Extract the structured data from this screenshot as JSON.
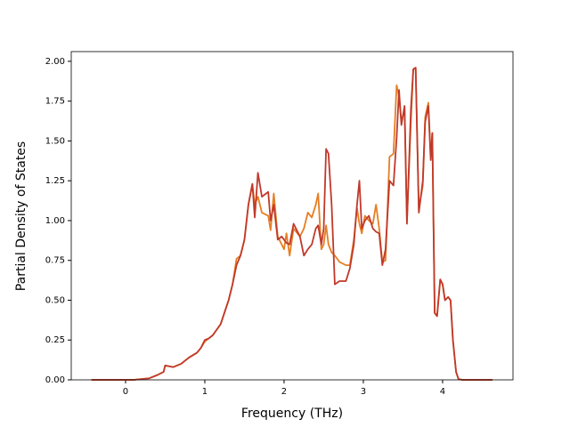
{
  "chart_data": {
    "type": "line",
    "xlabel": "Frequency (THz)",
    "ylabel": "Partial Density of States",
    "x": [
      -0.43,
      0.1,
      0.2,
      0.3,
      0.4,
      0.48,
      0.5,
      0.6,
      0.7,
      0.8,
      0.9,
      0.95,
      1.0,
      1.05,
      1.1,
      1.2,
      1.3,
      1.35,
      1.4,
      1.45,
      1.5,
      1.55,
      1.6,
      1.63,
      1.67,
      1.72,
      1.8,
      1.83,
      1.87,
      1.92,
      1.97,
      2.0,
      2.03,
      2.07,
      2.12,
      2.2,
      2.25,
      2.3,
      2.35,
      2.4,
      2.43,
      2.47,
      2.5,
      2.53,
      2.56,
      2.6,
      2.64,
      2.7,
      2.78,
      2.83,
      2.88,
      2.92,
      2.95,
      2.98,
      3.02,
      3.07,
      3.12,
      3.16,
      3.2,
      3.24,
      3.28,
      3.33,
      3.38,
      3.42,
      3.45,
      3.48,
      3.52,
      3.55,
      3.6,
      3.63,
      3.66,
      3.7,
      3.75,
      3.78,
      3.82,
      3.85,
      3.87,
      3.9,
      3.93,
      3.97,
      4.0,
      4.03,
      4.07,
      4.1,
      4.13,
      4.17,
      4.2,
      4.25,
      4.63
    ],
    "series": [
      {
        "color": "#e67e22",
        "values": [
          0,
          0,
          0.005,
          0.01,
          0.03,
          0.05,
          0.09,
          0.08,
          0.1,
          0.14,
          0.17,
          0.2,
          0.24,
          0.26,
          0.28,
          0.35,
          0.5,
          0.6,
          0.76,
          0.78,
          0.88,
          1.1,
          1.23,
          1.1,
          1.15,
          1.05,
          1.03,
          0.94,
          1.17,
          0.9,
          0.85,
          0.82,
          0.92,
          0.78,
          0.95,
          0.9,
          0.95,
          1.05,
          1.02,
          1.1,
          1.17,
          0.82,
          0.85,
          0.97,
          0.85,
          0.8,
          0.78,
          0.74,
          0.72,
          0.72,
          0.88,
          1.08,
          0.98,
          0.92,
          1.03,
          1.0,
          0.98,
          1.1,
          0.95,
          0.74,
          0.75,
          1.4,
          1.42,
          1.85,
          1.78,
          1.62,
          1.7,
          1.0,
          1.62,
          1.95,
          1.96,
          1.07,
          1.22,
          1.65,
          1.74,
          1.4,
          1.55,
          0.42,
          0.4,
          0.63,
          0.6,
          0.5,
          0.52,
          0.5,
          0.25,
          0.05,
          0.005,
          0,
          0
        ]
      },
      {
        "color": "#c0392b",
        "values": [
          0,
          0,
          0.005,
          0.01,
          0.03,
          0.05,
          0.09,
          0.08,
          0.1,
          0.14,
          0.17,
          0.2,
          0.25,
          0.26,
          0.28,
          0.35,
          0.5,
          0.6,
          0.72,
          0.78,
          0.88,
          1.1,
          1.23,
          1.02,
          1.3,
          1.15,
          1.18,
          1.0,
          1.1,
          0.88,
          0.9,
          0.88,
          0.86,
          0.85,
          0.98,
          0.9,
          0.78,
          0.82,
          0.85,
          0.95,
          0.97,
          0.85,
          0.95,
          1.45,
          1.42,
          1.1,
          0.6,
          0.62,
          0.62,
          0.7,
          0.85,
          1.1,
          1.25,
          0.95,
          1.0,
          1.03,
          0.95,
          0.93,
          0.92,
          0.72,
          0.82,
          1.25,
          1.22,
          1.52,
          1.82,
          1.6,
          1.72,
          0.98,
          1.7,
          1.95,
          1.96,
          1.05,
          1.25,
          1.62,
          1.72,
          1.38,
          1.55,
          0.42,
          0.4,
          0.63,
          0.6,
          0.5,
          0.52,
          0.5,
          0.25,
          0.05,
          0.005,
          0,
          0
        ]
      }
    ],
    "xlim": [
      -0.685,
      4.888
    ],
    "xticks": [
      0,
      1,
      2,
      3,
      4
    ],
    "ylim": [
      0,
      2.061
    ],
    "yticks": [
      {
        "value": 0,
        "label": "0.00"
      },
      {
        "value": 0.25,
        "label": "0.25"
      },
      {
        "value": 0.5,
        "label": "0.50"
      },
      {
        "value": 0.75,
        "label": "0.75"
      },
      {
        "value": 1,
        "label": "1.00"
      },
      {
        "value": 1.25,
        "label": "1.25"
      },
      {
        "value": 1.5,
        "label": "1.50"
      },
      {
        "value": 1.75,
        "label": "1.75"
      },
      {
        "value": 2,
        "label": "2.00"
      }
    ]
  }
}
